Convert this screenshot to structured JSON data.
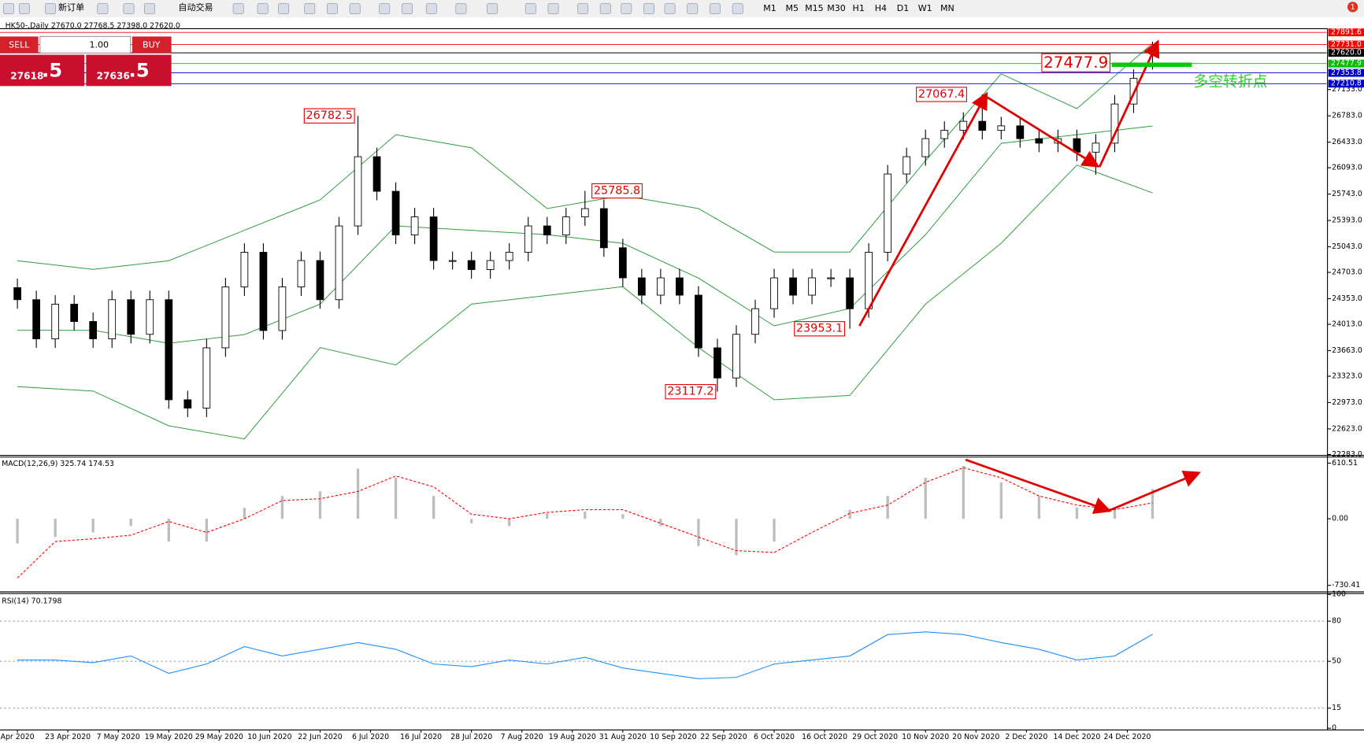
{
  "toolbar": {
    "new_order": "新订单",
    "auto_trading": "自动交易",
    "timeframes": [
      "M1",
      "M5",
      "M15",
      "M30",
      "H1",
      "H4",
      "D1",
      "W1",
      "MN"
    ],
    "notification": "1"
  },
  "header": "HK50-,Daily 27670.0 27768.5 27398.0 27620.0",
  "trade_panel": {
    "sell": "SELL",
    "buy": "BUY",
    "volume": "1.00",
    "sell_price": "27618",
    "sell_price_tail": ".5",
    "buy_price": "27636",
    "buy_price_tail": ".5"
  },
  "note": "多空转折点",
  "chart_data": [
    {
      "type": "candlestick",
      "title": "HK50-,Daily",
      "xlim": [
        -2.76,
        207.6
      ],
      "ylim": [
        22283,
        27941
      ],
      "yticks": [
        {
          "value": 27133,
          "label": "27133.0"
        },
        {
          "value": 26783,
          "label": "26783.0"
        },
        {
          "value": 26433,
          "label": "26433.0"
        },
        {
          "value": 26093,
          "label": "26093.0"
        },
        {
          "value": 25743,
          "label": "25743.0"
        },
        {
          "value": 25393,
          "label": "25393.0"
        },
        {
          "value": 25043,
          "label": "25043.0"
        },
        {
          "value": 24703,
          "label": "24703.0"
        },
        {
          "value": 24353,
          "label": "24353.0"
        },
        {
          "value": 24013,
          "label": "24013.0"
        },
        {
          "value": 23663,
          "label": "23663.0"
        },
        {
          "value": 23323,
          "label": "23323.0"
        },
        {
          "value": 22973,
          "label": "22973.0"
        },
        {
          "value": 22623,
          "label": "22623.0"
        },
        {
          "value": 22283,
          "label": "22283.0"
        }
      ],
      "grid": false,
      "candles": {
        "x": [
          0,
          3,
          6,
          9,
          12,
          15,
          18,
          21,
          24,
          27,
          30,
          33,
          36,
          39,
          42,
          45,
          48,
          51,
          54,
          57,
          60,
          63,
          66,
          69,
          72,
          75,
          78,
          81,
          84,
          87,
          90,
          93,
          96,
          99,
          102,
          105,
          108,
          111,
          114,
          117,
          120,
          123,
          126,
          129,
          132,
          135,
          138,
          141,
          144,
          147,
          150,
          153,
          156,
          159,
          162,
          165,
          168,
          171,
          174,
          177,
          180
        ],
        "open": [
          24500,
          24340,
          23820,
          24280,
          24050,
          23820,
          24340,
          23880,
          24340,
          23010,
          22900,
          23700,
          24510,
          24970,
          23930,
          24510,
          24860,
          24340,
          25320,
          26240,
          25780,
          25200,
          25440,
          24860,
          24860,
          24740,
          24860,
          24970,
          25320,
          25200,
          25440,
          25550,
          25030,
          24630,
          24400,
          24630,
          24400,
          23700,
          23300,
          23880,
          24220,
          24630,
          24400,
          24630,
          24630,
          24220,
          24970,
          26010,
          26240,
          26480,
          26590,
          26710,
          26590,
          26650,
          26480,
          26420,
          26480,
          26300,
          26420,
          26940,
          27670
        ],
        "high": [
          24620,
          24460,
          24400,
          24400,
          24170,
          24460,
          24460,
          24460,
          24460,
          23130,
          23820,
          24630,
          25090,
          25090,
          24630,
          24980,
          24980,
          25440,
          26782.5,
          26360,
          25900,
          25560,
          25560,
          24980,
          24980,
          24980,
          25090,
          25440,
          25440,
          25560,
          25785.8,
          25670,
          25150,
          24750,
          24750,
          24750,
          24520,
          23820,
          24000,
          24340,
          24750,
          24750,
          24750,
          24750,
          24750,
          25090,
          26130,
          26360,
          26600,
          26710,
          26830,
          27067.4,
          26770,
          26770,
          26600,
          26600,
          26600,
          26540,
          27060,
          27400,
          27768.5
        ],
        "low": [
          24220,
          23700,
          23700,
          23930,
          23700,
          23700,
          23760,
          23760,
          22890,
          22780,
          22780,
          23580,
          24390,
          23810,
          23810,
          24390,
          24220,
          24220,
          25200,
          25660,
          25080,
          25080,
          24740,
          24740,
          24620,
          24620,
          24740,
          24850,
          25080,
          25080,
          25320,
          24910,
          24510,
          24280,
          24280,
          24280,
          23580,
          23117.2,
          23180,
          23760,
          24100,
          24280,
          24280,
          24510,
          23953.1,
          24100,
          24850,
          25890,
          26120,
          26360,
          26470,
          26470,
          26470,
          26360,
          26300,
          26300,
          26180,
          26000,
          26300,
          26820,
          27398
        ],
        "close": [
          24340,
          23820,
          24280,
          24050,
          23820,
          24340,
          23880,
          24340,
          23010,
          22900,
          23700,
          24510,
          24970,
          23930,
          24510,
          24860,
          24340,
          25320,
          26240,
          25780,
          25200,
          25440,
          24860,
          24860,
          24740,
          24860,
          24970,
          25320,
          25200,
          25440,
          25550,
          25030,
          24630,
          24400,
          24630,
          24400,
          23700,
          23300,
          23880,
          24220,
          24630,
          24400,
          24630,
          24630,
          24220,
          24970,
          26010,
          26240,
          26480,
          26590,
          26710,
          26590,
          26650,
          26480,
          26420,
          26480,
          26300,
          26420,
          26940,
          27280,
          27620
        ]
      },
      "bands": {
        "color": "#2e9e3e",
        "x": [
          0,
          12,
          24,
          36,
          48,
          60,
          72,
          84,
          96,
          108,
          120,
          132,
          144,
          156,
          168,
          180
        ],
        "upper": [
          24858,
          24743,
          24858,
          25262,
          25666,
          26532,
          26359,
          25551,
          25724,
          25551,
          24973,
          24973,
          26186,
          27341,
          26879,
          27745
        ],
        "middle": [
          23934,
          23934,
          23761,
          23876,
          24281,
          25320,
          25262,
          25204,
          25089,
          24627,
          23992,
          24223,
          25204,
          26417,
          26532,
          26648
        ],
        "lower": [
          23184,
          23126,
          22664,
          22491,
          23703,
          23472,
          24281,
          24396,
          24512,
          23703,
          23010,
          23068,
          24281,
          25089,
          26128,
          25759
        ]
      },
      "price_lines": [
        {
          "value": 27891.6,
          "color": "#ff0000"
        },
        {
          "value": 27731,
          "label": "27731.0",
          "color": "#ff0000"
        },
        {
          "value": 27620,
          "label": "27620.0",
          "color": "#000000"
        },
        {
          "value": 27477.9,
          "color": "#00c000"
        },
        {
          "value": 27353.8,
          "color": "#0000cc"
        },
        {
          "value": 27210.8,
          "color": "#0000cc"
        }
      ]
    },
    {
      "type": "bar",
      "title": "MACD(12,26,9) 325.74 174.53",
      "xlim": [
        -2.76,
        207.6
      ],
      "ylim": [
        -792,
        677
      ],
      "yticks": [
        610.51,
        {
          "value": 0,
          "label": "0.00"
        },
        -730.41
      ],
      "grid": false,
      "color": "#bdbdbd",
      "x": [
        0,
        6,
        12,
        18,
        24,
        30,
        36,
        42,
        48,
        54,
        60,
        66,
        72,
        78,
        84,
        90,
        96,
        102,
        108,
        114,
        120,
        126,
        132,
        138,
        144,
        150,
        156,
        162,
        168,
        174,
        180
      ],
      "values": [
        -270,
        -200,
        -150,
        -80,
        -250,
        -250,
        120,
        250,
        300,
        550,
        450,
        250,
        -50,
        -80,
        60,
        80,
        50,
        -80,
        -300,
        -400,
        -250,
        0,
        100,
        250,
        450,
        580,
        400,
        250,
        120,
        100,
        325.74
      ],
      "signal": {
        "color": "#ff0000",
        "values": [
          -650,
          -250,
          -220,
          -180,
          -30,
          -150,
          0,
          200,
          220,
          300,
          470,
          350,
          50,
          0,
          70,
          100,
          100,
          -50,
          -200,
          -350,
          -370,
          -150,
          60,
          150,
          400,
          560,
          450,
          250,
          150,
          100,
          174.53
        ]
      }
    },
    {
      "type": "line",
      "title": "RSI(14) 70.1798",
      "xlim": [
        -2.76,
        207.6
      ],
      "ylim": [
        0,
        100
      ],
      "yticks": [
        100,
        80,
        50,
        15,
        0
      ],
      "grid": true,
      "color": "#1e90ff",
      "x": [
        0,
        6,
        12,
        18,
        24,
        30,
        36,
        42,
        48,
        54,
        60,
        66,
        72,
        78,
        84,
        90,
        96,
        102,
        108,
        114,
        120,
        126,
        132,
        138,
        144,
        150,
        156,
        162,
        168,
        174,
        180
      ],
      "values": [
        51,
        51,
        49,
        54,
        41,
        48,
        61,
        54,
        59,
        64,
        59,
        48,
        46,
        51,
        48,
        53,
        45,
        41,
        37,
        38,
        48,
        51,
        54,
        70,
        72,
        70,
        64,
        59,
        51,
        54,
        70.1798
      ],
      "xticks": [
        {
          "value": 0,
          "label": "Apr 2020"
        },
        {
          "value": 8,
          "label": "23 Apr 2020"
        },
        {
          "value": 16,
          "label": "7 May 2020"
        },
        {
          "value": 24,
          "label": "19 May 2020"
        },
        {
          "value": 32,
          "label": "29 May 2020"
        },
        {
          "value": 40,
          "label": "10 Jun 2020"
        },
        {
          "value": 48,
          "label": "22 Jun 2020"
        },
        {
          "value": 56,
          "label": "6 Jul 2020"
        },
        {
          "value": 64,
          "label": "16 Jul 2020"
        },
        {
          "value": 72,
          "label": "28 Jul 2020"
        },
        {
          "value": 80,
          "label": "7 Aug 2020"
        },
        {
          "value": 88,
          "label": "19 Aug 2020"
        },
        {
          "value": 96,
          "label": "31 Aug 2020"
        },
        {
          "value": 104,
          "label": "10 Sep 2020"
        },
        {
          "value": 112,
          "label": "22 Sep 2020"
        },
        {
          "value": 120,
          "label": "6 Oct 2020"
        },
        {
          "value": 128,
          "label": "16 Oct 2020"
        },
        {
          "value": 136,
          "label": "29 Oct 2020"
        },
        {
          "value": 144,
          "label": "10 Nov 2020"
        },
        {
          "value": 152,
          "label": "20 Nov 2020"
        },
        {
          "value": 160,
          "label": "2 Dec 2020"
        },
        {
          "value": 168,
          "label": "14 Dec 2020"
        },
        {
          "value": 176,
          "label": "24 Dec 2020"
        }
      ]
    }
  ]
}
